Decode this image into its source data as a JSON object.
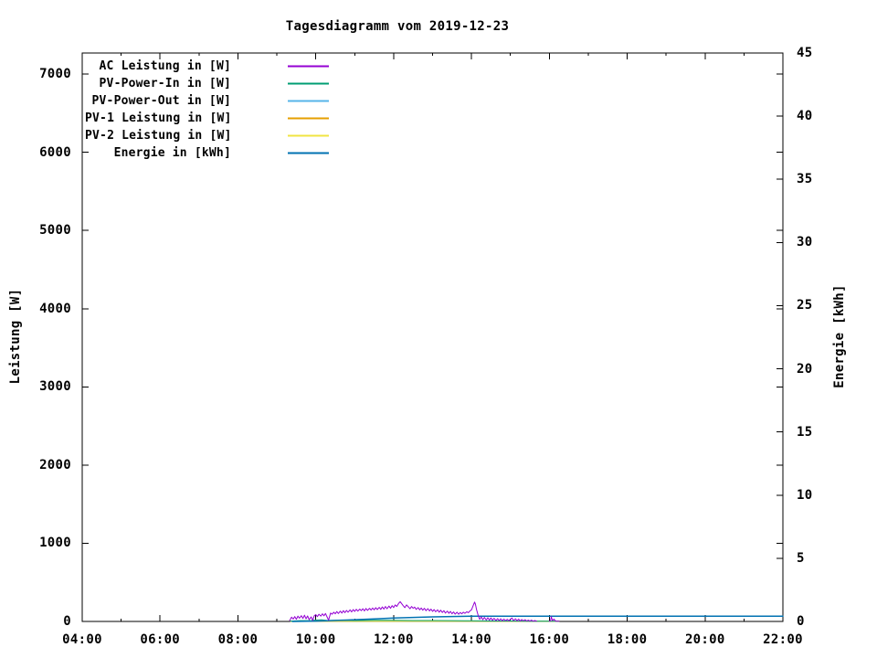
{
  "title": "Tagesdiagramm vom 2019-12-23",
  "axes": {
    "left": {
      "label": "Leistung [W]",
      "ticks": [
        0,
        1000,
        2000,
        3000,
        4000,
        5000,
        6000,
        7000
      ],
      "range": [
        0,
        7270
      ]
    },
    "right": {
      "label": "Energie [kWh]",
      "ticks": [
        0,
        5,
        10,
        15,
        20,
        25,
        30,
        35,
        40,
        45
      ],
      "range": [
        0,
        45
      ]
    },
    "x": {
      "tick_labels": [
        "04:00",
        "06:00",
        "08:00",
        "10:00",
        "12:00",
        "14:00",
        "16:00",
        "18:00",
        "20:00",
        "22:00"
      ],
      "tick_hours": [
        4,
        6,
        8,
        10,
        12,
        14,
        16,
        18,
        20,
        22
      ],
      "minor_hours": [
        5,
        7,
        9,
        11,
        13,
        15,
        17,
        19,
        21
      ],
      "range_hours": [
        4,
        22
      ]
    }
  },
  "legend": {
    "entries": [
      {
        "label": "AC Leistung in [W]",
        "color": "#9400d3"
      },
      {
        "label": "PV-Power-In in [W]",
        "color": "#009e73"
      },
      {
        "label": "PV-Power-Out in [W]",
        "color": "#56b4e9"
      },
      {
        "label": "PV-1 Leistung in [W]",
        "color": "#e69f00"
      },
      {
        "label": "PV-2 Leistung in [W]",
        "color": "#f0e442"
      },
      {
        "label": "Energie in [kWh]",
        "color": "#0072b2"
      }
    ]
  },
  "chart_data": {
    "type": "line",
    "title": "Tagesdiagramm vom 2019-12-23",
    "x_unit": "hour_of_day",
    "xlim": [
      4,
      22
    ],
    "grid": false,
    "legend_position": "top-left-inside",
    "y_left": {
      "label": "Leistung [W]",
      "lim": [
        0,
        7270
      ]
    },
    "y_right": {
      "label": "Energie [kWh]",
      "lim": [
        0,
        45
      ]
    },
    "series": [
      {
        "name": "AC Leistung in [W]",
        "color": "#9400d3",
        "axis": "left",
        "width": 1,
        "segments": [
          [
            [
              9.33,
              12
            ],
            [
              9.38,
              55
            ],
            [
              9.42,
              30
            ],
            [
              9.46,
              62
            ],
            [
              9.5,
              28
            ],
            [
              9.54,
              68
            ],
            [
              9.58,
              42
            ],
            [
              9.63,
              74
            ],
            [
              9.67,
              38
            ],
            [
              9.71,
              80
            ],
            [
              9.75,
              34
            ],
            [
              9.79,
              70
            ],
            [
              9.83,
              22
            ],
            [
              9.88,
              58
            ],
            [
              9.92,
              14
            ],
            [
              9.96,
              72
            ],
            [
              10.0,
              88
            ],
            [
              10.04,
              62
            ],
            [
              10.08,
              92
            ],
            [
              10.13,
              68
            ],
            [
              10.17,
              98
            ],
            [
              10.21,
              72
            ],
            [
              10.25,
              102
            ],
            [
              10.29,
              58
            ],
            [
              10.33,
              18
            ],
            [
              10.38,
              108
            ],
            [
              10.42,
              92
            ],
            [
              10.46,
              118
            ],
            [
              10.5,
              98
            ],
            [
              10.54,
              126
            ],
            [
              10.58,
              102
            ],
            [
              10.63,
              132
            ],
            [
              10.67,
              108
            ],
            [
              10.71,
              138
            ],
            [
              10.75,
              112
            ],
            [
              10.79,
              142
            ],
            [
              10.83,
              118
            ],
            [
              10.88,
              148
            ],
            [
              10.92,
              122
            ],
            [
              10.96,
              152
            ],
            [
              11.0,
              128
            ],
            [
              11.04,
              156
            ],
            [
              11.08,
              132
            ],
            [
              11.13,
              158
            ],
            [
              11.17,
              138
            ],
            [
              11.21,
              162
            ],
            [
              11.25,
              134
            ],
            [
              11.29,
              166
            ],
            [
              11.33,
              142
            ],
            [
              11.38,
              168
            ],
            [
              11.42,
              146
            ],
            [
              11.46,
              172
            ],
            [
              11.5,
              148
            ],
            [
              11.54,
              176
            ],
            [
              11.58,
              152
            ],
            [
              11.63,
              180
            ],
            [
              11.67,
              154
            ],
            [
              11.71,
              186
            ],
            [
              11.75,
              158
            ],
            [
              11.79,
              192
            ],
            [
              11.83,
              162
            ],
            [
              11.88,
              196
            ],
            [
              11.92,
              168
            ],
            [
              11.96,
              202
            ],
            [
              12.0,
              178
            ],
            [
              12.04,
              212
            ],
            [
              12.08,
              192
            ],
            [
              12.13,
              232
            ],
            [
              12.17,
              252
            ],
            [
              12.21,
              226
            ],
            [
              12.25,
              200
            ],
            [
              12.29,
              176
            ],
            [
              12.33,
              212
            ],
            [
              12.38,
              186
            ],
            [
              12.42,
              162
            ],
            [
              12.46,
              192
            ],
            [
              12.5,
              168
            ],
            [
              12.54,
              184
            ],
            [
              12.58,
              154
            ],
            [
              12.63,
              178
            ],
            [
              12.67,
              148
            ],
            [
              12.71,
              172
            ],
            [
              12.75,
              144
            ],
            [
              12.79,
              168
            ],
            [
              12.83,
              138
            ],
            [
              12.88,
              164
            ],
            [
              12.92,
              134
            ],
            [
              12.96,
              158
            ],
            [
              13.0,
              128
            ],
            [
              13.04,
              152
            ],
            [
              13.08,
              124
            ],
            [
              13.13,
              148
            ],
            [
              13.17,
              118
            ],
            [
              13.21,
              144
            ],
            [
              13.25,
              114
            ],
            [
              13.29,
              138
            ],
            [
              13.33,
              108
            ],
            [
              13.38,
              132
            ],
            [
              13.42,
              104
            ],
            [
              13.46,
              128
            ],
            [
              13.5,
              98
            ],
            [
              13.54,
              122
            ],
            [
              13.58,
              94
            ],
            [
              13.63,
              118
            ],
            [
              13.67,
              92
            ],
            [
              13.71,
              114
            ],
            [
              13.75,
              98
            ],
            [
              13.79,
              118
            ],
            [
              13.83,
              104
            ],
            [
              13.88,
              124
            ],
            [
              13.92,
              112
            ],
            [
              13.96,
              134
            ],
            [
              14.0,
              148
            ],
            [
              14.04,
              198
            ],
            [
              14.08,
              248
            ],
            [
              14.1,
              222
            ],
            [
              14.13,
              148
            ],
            [
              14.17,
              78
            ],
            [
              14.21,
              28
            ],
            [
              14.25,
              58
            ],
            [
              14.29,
              22
            ],
            [
              14.33,
              52
            ],
            [
              14.38,
              18
            ],
            [
              14.42,
              48
            ],
            [
              14.46,
              16
            ],
            [
              14.5,
              44
            ],
            [
              14.54,
              14
            ],
            [
              14.58,
              40
            ],
            [
              14.63,
              12
            ],
            [
              14.67,
              36
            ],
            [
              14.71,
              10
            ],
            [
              14.75,
              34
            ],
            [
              14.79,
              8
            ],
            [
              14.83,
              30
            ],
            [
              14.88,
              10
            ],
            [
              14.92,
              28
            ],
            [
              14.96,
              8
            ],
            [
              15.0,
              26
            ],
            [
              15.04,
              44
            ],
            [
              15.08,
              12
            ],
            [
              15.13,
              34
            ],
            [
              15.17,
              8
            ],
            [
              15.21,
              30
            ],
            [
              15.25,
              6
            ],
            [
              15.29,
              24
            ],
            [
              15.33,
              8
            ],
            [
              15.38,
              22
            ],
            [
              15.42,
              6
            ],
            [
              15.46,
              18
            ],
            [
              15.5,
              5
            ],
            [
              15.54,
              16
            ],
            [
              15.58,
              5
            ],
            [
              15.63,
              12
            ],
            [
              15.67,
              4
            ]
          ],
          [
            [
              16.0,
              4
            ],
            [
              16.03,
              8
            ],
            [
              16.05,
              62
            ],
            [
              16.08,
              10
            ],
            [
              16.12,
              30
            ],
            [
              16.16,
              5
            ],
            [
              16.25,
              3
            ]
          ]
        ]
      },
      {
        "name": "PV-Power-In in [W]",
        "color": "#009e73",
        "axis": "left",
        "width": 1,
        "segments": [
          [
            [
              9.35,
              5
            ],
            [
              9.6,
              10
            ],
            [
              9.9,
              12
            ],
            [
              10.0,
              18
            ],
            [
              10.15,
              20
            ],
            [
              10.3,
              12
            ],
            [
              10.6,
              14
            ],
            [
              11.0,
              12
            ],
            [
              11.5,
              14
            ],
            [
              12.0,
              14
            ],
            [
              12.5,
              12
            ],
            [
              13.0,
              12
            ],
            [
              13.5,
              10
            ],
            [
              14.0,
              8
            ],
            [
              14.5,
              6
            ],
            [
              15.0,
              6
            ],
            [
              15.5,
              4
            ],
            [
              16.0,
              3
            ],
            [
              16.25,
              2
            ]
          ]
        ]
      },
      {
        "name": "PV-Power-Out in [W]",
        "color": "#56b4e9",
        "axis": "left",
        "width": 1,
        "segments": [
          [
            [
              9.35,
              2
            ],
            [
              12.0,
              3
            ],
            [
              16.25,
              2
            ]
          ]
        ]
      },
      {
        "name": "PV-1 Leistung in [W]",
        "color": "#e69f00",
        "axis": "left",
        "width": 1,
        "segments": [
          [
            [
              9.35,
              2
            ],
            [
              16.25,
              2
            ]
          ]
        ]
      },
      {
        "name": "PV-2 Leistung in [W]",
        "color": "#f0e442",
        "axis": "left",
        "width": 1,
        "segments": [
          [
            [
              9.35,
              2
            ],
            [
              16.25,
              2
            ]
          ]
        ]
      },
      {
        "name": "Energie in [kWh]",
        "color": "#0072b2",
        "axis": "right",
        "width": 1.5,
        "segments": [
          [
            [
              9.4,
              0
            ],
            [
              10.0,
              0.03
            ],
            [
              10.5,
              0.08
            ],
            [
              11.0,
              0.14
            ],
            [
              11.5,
              0.2
            ],
            [
              12.0,
              0.27
            ],
            [
              12.5,
              0.32
            ],
            [
              13.0,
              0.36
            ],
            [
              13.5,
              0.39
            ],
            [
              14.0,
              0.41
            ],
            [
              14.5,
              0.42
            ],
            [
              22.0,
              0.42
            ]
          ]
        ]
      }
    ]
  }
}
